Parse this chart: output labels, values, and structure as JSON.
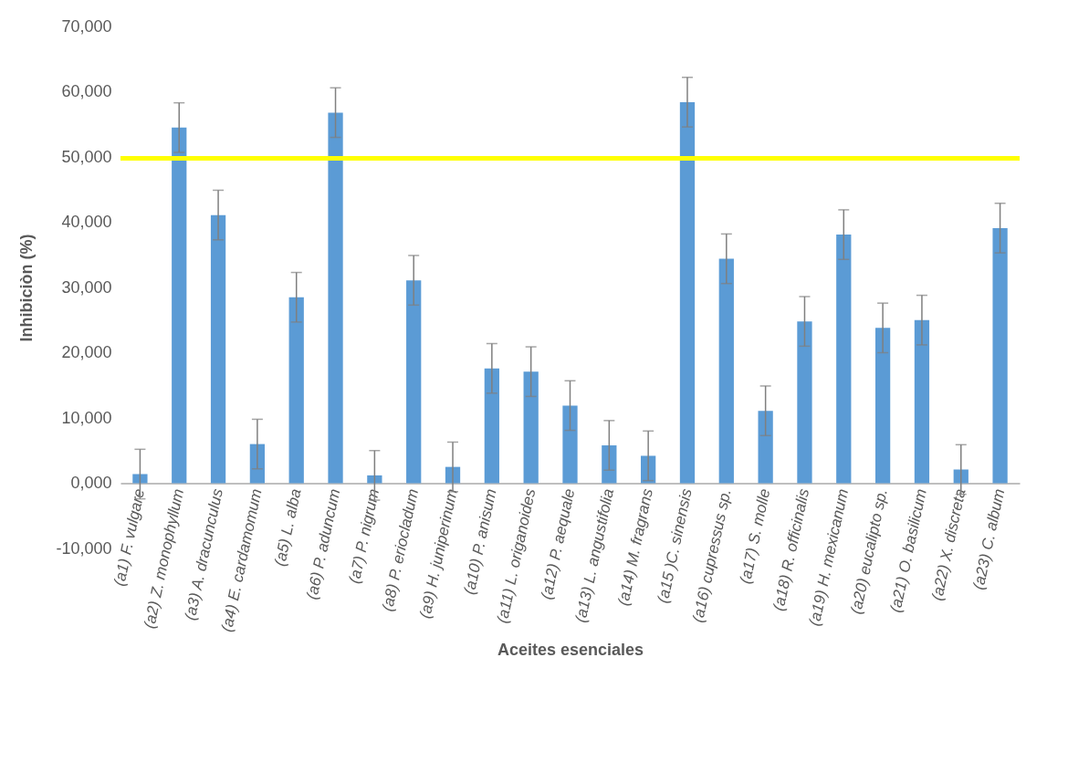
{
  "chart_data": {
    "type": "bar",
    "xlabel": "Aceites esenciales",
    "ylabel": "Inhibiciòn (%)",
    "categories": [
      "(a1) F. vulgare",
      "(a2) Z. monophyllum",
      "(a3) A. dracunculus",
      "(a4) E. cardamomum",
      "(a5) L. alba",
      "(a6) P. aduncum",
      "(a7) P. nigrum",
      "(a8) P. eriocladum",
      "(a9) H. juniperinum",
      "(a10) P. anisum",
      "(a11) L. origanoides",
      "(a12) P. aequale",
      "(a13) L. angustifolia",
      "(a14) M. fragrans",
      "(a15 )C. sinensis",
      "(a16) cupressus sp.",
      "(a17) S. molle",
      "(a18) R. officinalis",
      "(a19) H. mexicanum",
      "(a20) eucalipto sp.",
      "(a21) O. basilicum",
      "(a22) X. discreta",
      "(a23) C. album"
    ],
    "values": [
      1400,
      54500,
      41100,
      6000,
      28500,
      56800,
      1200,
      31100,
      2500,
      17600,
      17100,
      11900,
      5800,
      4200,
      58400,
      34400,
      11100,
      24800,
      38100,
      23800,
      25000,
      2100,
      39100
    ],
    "errors": [
      3800,
      3800,
      3800,
      3800,
      3800,
      3800,
      3800,
      3800,
      3800,
      3800,
      3800,
      3800,
      3800,
      3800,
      3800,
      3800,
      3800,
      3800,
      3800,
      3800,
      3800,
      3800,
      3800
    ],
    "color": "#5b9bd5",
    "ylim": [
      -10000,
      70000
    ],
    "yticks": [
      {
        "value": -10000,
        "label": "-10,000"
      },
      {
        "value": 0,
        "label": "0,000"
      },
      {
        "value": 10000,
        "label": "10,000"
      },
      {
        "value": 20000,
        "label": "20,000"
      },
      {
        "value": 30000,
        "label": "30,000"
      },
      {
        "value": 40000,
        "label": "40,000"
      },
      {
        "value": 50000,
        "label": "50,000"
      },
      {
        "value": 60000,
        "label": "60,000"
      },
      {
        "value": 70000,
        "label": "70,000"
      }
    ],
    "ref_lines": [
      {
        "axis": "y",
        "value": 49800,
        "color": "#ffff00"
      }
    ],
    "grid": false
  }
}
